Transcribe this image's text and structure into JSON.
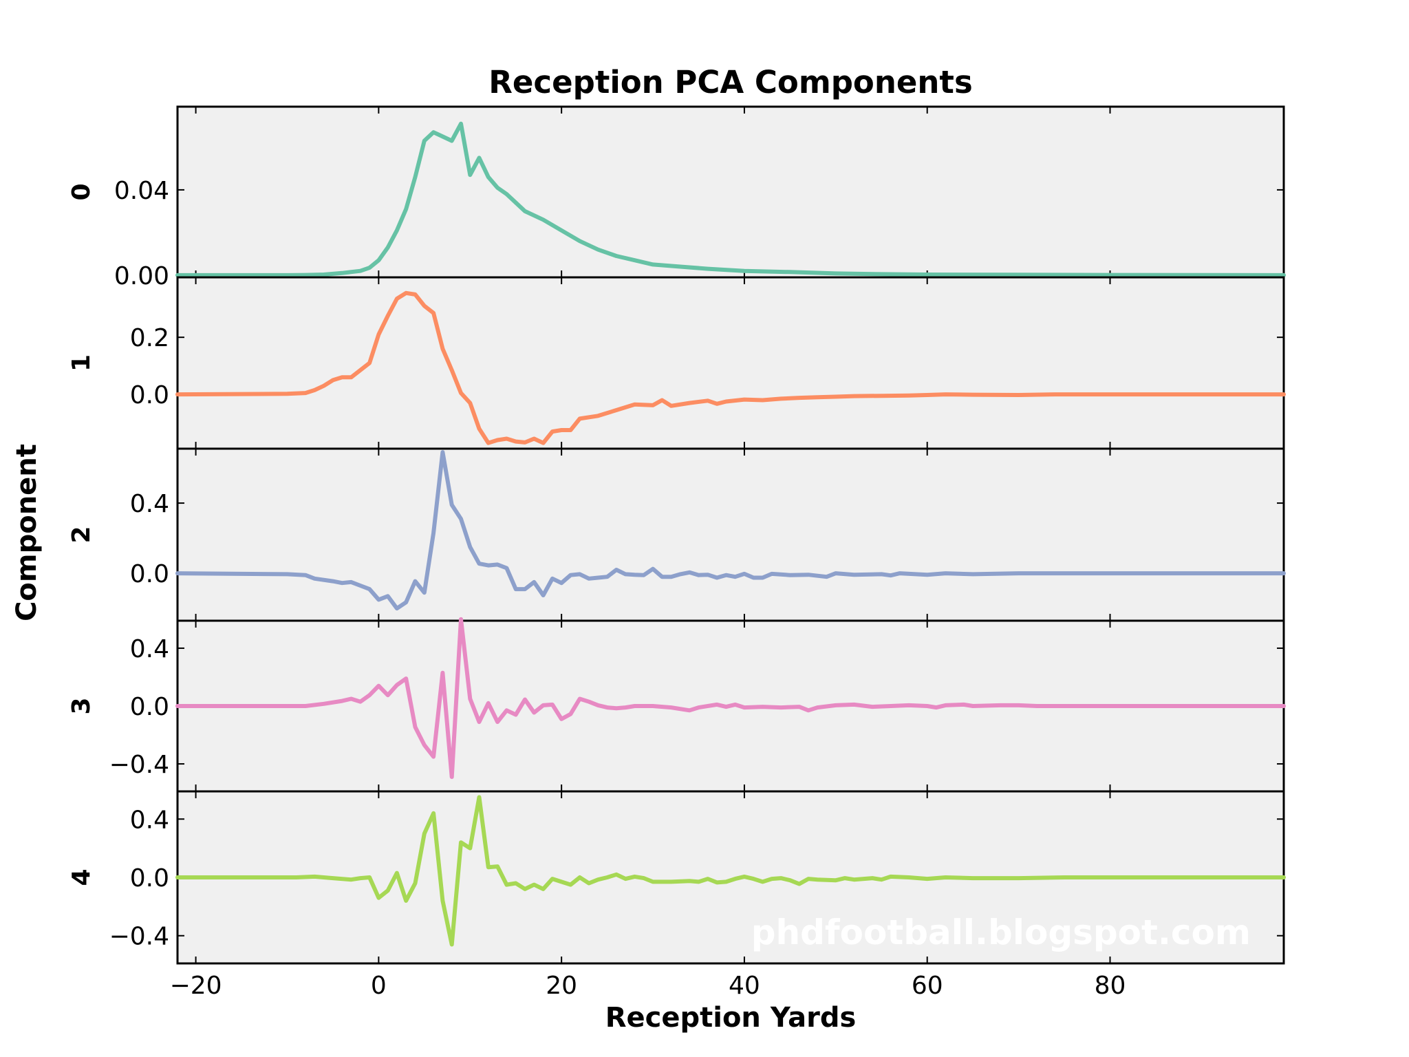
{
  "chart_data": {
    "type": "line",
    "title": "Reception PCA Components",
    "xlabel": "Reception Yards",
    "ylabel": "Component",
    "xlim": [
      -22,
      99
    ],
    "x_ticks": [
      -20,
      0,
      20,
      40,
      60,
      80
    ],
    "x_tick_labels": [
      "−20",
      "0",
      "20",
      "40",
      "60",
      "80"
    ],
    "watermark": "phdfootball.blogspot.com",
    "grid": false,
    "panels": [
      {
        "label": "0",
        "color": "#66c2a5",
        "ylim": [
          -0.001,
          0.079
        ],
        "y_ticks": [
          0.0,
          0.04
        ],
        "y_tick_labels": [
          "0.00",
          "0.04"
        ],
        "points": [
          [
            -22,
            0.0
          ],
          [
            -10,
            0.0
          ],
          [
            -8,
            0.0001
          ],
          [
            -6,
            0.0003
          ],
          [
            -4,
            0.001
          ],
          [
            -2,
            0.002
          ],
          [
            -1,
            0.0035
          ],
          [
            0,
            0.007
          ],
          [
            1,
            0.013
          ],
          [
            2,
            0.021
          ],
          [
            3,
            0.031
          ],
          [
            4,
            0.046
          ],
          [
            5,
            0.063
          ],
          [
            6,
            0.067
          ],
          [
            7,
            0.065
          ],
          [
            8,
            0.063
          ],
          [
            9,
            0.071
          ],
          [
            10,
            0.047
          ],
          [
            11,
            0.055
          ],
          [
            12,
            0.046
          ],
          [
            13,
            0.041
          ],
          [
            14,
            0.038
          ],
          [
            16,
            0.03
          ],
          [
            18,
            0.026
          ],
          [
            20,
            0.021
          ],
          [
            22,
            0.016
          ],
          [
            24,
            0.012
          ],
          [
            26,
            0.009
          ],
          [
            28,
            0.007
          ],
          [
            30,
            0.005
          ],
          [
            33,
            0.004
          ],
          [
            36,
            0.003
          ],
          [
            40,
            0.002
          ],
          [
            45,
            0.0015
          ],
          [
            50,
            0.0008
          ],
          [
            55,
            0.0005
          ],
          [
            60,
            0.0003
          ],
          [
            70,
            0.0002
          ],
          [
            80,
            0.0001
          ],
          [
            99,
            0.0
          ]
        ]
      },
      {
        "label": "1",
        "color": "#fc8d62",
        "ylim": [
          -0.19,
          0.41
        ],
        "y_ticks": [
          0.0,
          0.2
        ],
        "y_tick_labels": [
          "0.0",
          "0.2"
        ],
        "points": [
          [
            -22,
            0.0
          ],
          [
            -10,
            0.002
          ],
          [
            -8,
            0.005
          ],
          [
            -7,
            0.015
          ],
          [
            -6,
            0.03
          ],
          [
            -5,
            0.05
          ],
          [
            -4,
            0.06
          ],
          [
            -3,
            0.06
          ],
          [
            -2,
            0.085
          ],
          [
            -1,
            0.11
          ],
          [
            0,
            0.21
          ],
          [
            1,
            0.275
          ],
          [
            2,
            0.335
          ],
          [
            3,
            0.355
          ],
          [
            4,
            0.35
          ],
          [
            5,
            0.31
          ],
          [
            6,
            0.285
          ],
          [
            7,
            0.16
          ],
          [
            8,
            0.085
          ],
          [
            9,
            0.005
          ],
          [
            10,
            -0.03
          ],
          [
            11,
            -0.12
          ],
          [
            12,
            -0.17
          ],
          [
            13,
            -0.16
          ],
          [
            14,
            -0.155
          ],
          [
            15,
            -0.165
          ],
          [
            16,
            -0.168
          ],
          [
            17,
            -0.155
          ],
          [
            18,
            -0.17
          ],
          [
            19,
            -0.13
          ],
          [
            20,
            -0.125
          ],
          [
            21,
            -0.125
          ],
          [
            22,
            -0.085
          ],
          [
            24,
            -0.075
          ],
          [
            26,
            -0.055
          ],
          [
            28,
            -0.035
          ],
          [
            30,
            -0.038
          ],
          [
            31,
            -0.02
          ],
          [
            32,
            -0.04
          ],
          [
            34,
            -0.03
          ],
          [
            36,
            -0.022
          ],
          [
            37,
            -0.033
          ],
          [
            38,
            -0.025
          ],
          [
            40,
            -0.018
          ],
          [
            42,
            -0.02
          ],
          [
            44,
            -0.015
          ],
          [
            46,
            -0.012
          ],
          [
            48,
            -0.01
          ],
          [
            50,
            -0.008
          ],
          [
            52,
            -0.006
          ],
          [
            55,
            -0.005
          ],
          [
            58,
            -0.004
          ],
          [
            60,
            -0.002
          ],
          [
            62,
            0.0
          ],
          [
            65,
            -0.001
          ],
          [
            70,
            -0.002
          ],
          [
            74,
            0.0
          ],
          [
            80,
            0.0
          ],
          [
            99,
            0.0
          ]
        ]
      },
      {
        "label": "2",
        "color": "#8da0cb",
        "ylim": [
          -0.27,
          0.71
        ],
        "y_ticks": [
          0.0,
          0.4
        ],
        "y_tick_labels": [
          "0.0",
          "0.4"
        ],
        "points": [
          [
            -22,
            0.0
          ],
          [
            -10,
            -0.005
          ],
          [
            -8,
            -0.01
          ],
          [
            -7,
            -0.03
          ],
          [
            -5,
            -0.045
          ],
          [
            -4,
            -0.055
          ],
          [
            -3,
            -0.05
          ],
          [
            -2,
            -0.07
          ],
          [
            -1,
            -0.09
          ],
          [
            0,
            -0.15
          ],
          [
            1,
            -0.13
          ],
          [
            2,
            -0.2
          ],
          [
            3,
            -0.165
          ],
          [
            4,
            -0.045
          ],
          [
            5,
            -0.11
          ],
          [
            6,
            0.23
          ],
          [
            7,
            0.69
          ],
          [
            8,
            0.39
          ],
          [
            9,
            0.31
          ],
          [
            10,
            0.15
          ],
          [
            11,
            0.055
          ],
          [
            12,
            0.045
          ],
          [
            13,
            0.05
          ],
          [
            14,
            0.03
          ],
          [
            15,
            -0.09
          ],
          [
            16,
            -0.09
          ],
          [
            17,
            -0.05
          ],
          [
            18,
            -0.125
          ],
          [
            19,
            -0.03
          ],
          [
            20,
            -0.055
          ],
          [
            21,
            -0.01
          ],
          [
            22,
            -0.005
          ],
          [
            23,
            -0.03
          ],
          [
            24,
            -0.025
          ],
          [
            25,
            -0.02
          ],
          [
            26,
            0.02
          ],
          [
            27,
            -0.005
          ],
          [
            28,
            -0.008
          ],
          [
            29,
            -0.01
          ],
          [
            30,
            0.025
          ],
          [
            31,
            -0.02
          ],
          [
            32,
            -0.02
          ],
          [
            33,
            -0.005
          ],
          [
            34,
            0.005
          ],
          [
            35,
            -0.01
          ],
          [
            36,
            -0.008
          ],
          [
            37,
            -0.025
          ],
          [
            38,
            -0.01
          ],
          [
            39,
            -0.02
          ],
          [
            40,
            -0.003
          ],
          [
            41,
            -0.025
          ],
          [
            42,
            -0.025
          ],
          [
            43,
            -0.003
          ],
          [
            45,
            -0.01
          ],
          [
            47,
            -0.008
          ],
          [
            49,
            -0.02
          ],
          [
            50,
            0.0
          ],
          [
            52,
            -0.008
          ],
          [
            55,
            -0.005
          ],
          [
            56,
            -0.012
          ],
          [
            57,
            0.0
          ],
          [
            60,
            -0.008
          ],
          [
            62,
            0.0
          ],
          [
            65,
            -0.005
          ],
          [
            70,
            0.0
          ],
          [
            80,
            0.0
          ],
          [
            99,
            0.0
          ]
        ]
      },
      {
        "label": "3",
        "color": "#e78ac3",
        "ylim": [
          -0.59,
          0.59
        ],
        "y_ticks": [
          -0.4,
          0.0,
          0.4
        ],
        "y_tick_labels": [
          "−0.4",
          "0.0",
          "0.4"
        ],
        "points": [
          [
            -22,
            0.0
          ],
          [
            -8,
            0.0
          ],
          [
            -6,
            0.015
          ],
          [
            -4,
            0.035
          ],
          [
            -3,
            0.05
          ],
          [
            -2,
            0.03
          ],
          [
            -1,
            0.075
          ],
          [
            0,
            0.14
          ],
          [
            1,
            0.075
          ],
          [
            2,
            0.145
          ],
          [
            3,
            0.19
          ],
          [
            4,
            -0.145
          ],
          [
            5,
            -0.27
          ],
          [
            6,
            -0.35
          ],
          [
            7,
            0.23
          ],
          [
            8,
            -0.49
          ],
          [
            9,
            0.6
          ],
          [
            10,
            0.05
          ],
          [
            11,
            -0.11
          ],
          [
            12,
            0.02
          ],
          [
            13,
            -0.11
          ],
          [
            14,
            -0.03
          ],
          [
            15,
            -0.06
          ],
          [
            16,
            0.045
          ],
          [
            17,
            -0.045
          ],
          [
            18,
            0.005
          ],
          [
            19,
            0.01
          ],
          [
            20,
            -0.09
          ],
          [
            21,
            -0.055
          ],
          [
            22,
            0.05
          ],
          [
            23,
            0.03
          ],
          [
            24,
            0.005
          ],
          [
            25,
            -0.01
          ],
          [
            26,
            -0.015
          ],
          [
            27,
            -0.01
          ],
          [
            28,
            0.0
          ],
          [
            30,
            0.0
          ],
          [
            32,
            -0.01
          ],
          [
            34,
            -0.03
          ],
          [
            35,
            -0.01
          ],
          [
            37,
            0.01
          ],
          [
            38,
            -0.005
          ],
          [
            39,
            0.01
          ],
          [
            40,
            -0.01
          ],
          [
            42,
            -0.005
          ],
          [
            44,
            -0.01
          ],
          [
            46,
            -0.005
          ],
          [
            47,
            -0.03
          ],
          [
            48,
            -0.01
          ],
          [
            50,
            0.005
          ],
          [
            52,
            0.01
          ],
          [
            54,
            -0.005
          ],
          [
            56,
            0.0
          ],
          [
            58,
            0.005
          ],
          [
            60,
            0.0
          ],
          [
            61,
            -0.01
          ],
          [
            62,
            0.005
          ],
          [
            64,
            0.01
          ],
          [
            65,
            0.0
          ],
          [
            68,
            0.005
          ],
          [
            70,
            0.005
          ],
          [
            72,
            0.0
          ],
          [
            75,
            0.0
          ],
          [
            80,
            0.0
          ],
          [
            99,
            0.0
          ]
        ]
      },
      {
        "label": "4",
        "color": "#a6d854",
        "ylim": [
          -0.59,
          0.59
        ],
        "y_ticks": [
          -0.4,
          0.0,
          0.4
        ],
        "y_tick_labels": [
          "−0.4",
          "0.0",
          "0.4"
        ],
        "points": [
          [
            -22,
            0.0
          ],
          [
            -9,
            0.0
          ],
          [
            -7,
            0.005
          ],
          [
            -5,
            -0.005
          ],
          [
            -3,
            -0.015
          ],
          [
            -2,
            -0.005
          ],
          [
            -1,
            0.0
          ],
          [
            0,
            -0.14
          ],
          [
            1,
            -0.09
          ],
          [
            2,
            0.03
          ],
          [
            3,
            -0.16
          ],
          [
            4,
            -0.04
          ],
          [
            5,
            0.3
          ],
          [
            6,
            0.44
          ],
          [
            7,
            -0.16
          ],
          [
            8,
            -0.46
          ],
          [
            9,
            0.24
          ],
          [
            10,
            0.2
          ],
          [
            11,
            0.55
          ],
          [
            12,
            0.07
          ],
          [
            13,
            0.075
          ],
          [
            14,
            -0.05
          ],
          [
            15,
            -0.04
          ],
          [
            16,
            -0.08
          ],
          [
            17,
            -0.05
          ],
          [
            18,
            -0.08
          ],
          [
            19,
            -0.01
          ],
          [
            20,
            -0.03
          ],
          [
            21,
            -0.05
          ],
          [
            22,
            0.0
          ],
          [
            23,
            -0.04
          ],
          [
            24,
            -0.015
          ],
          [
            25,
            0.0
          ],
          [
            26,
            0.02
          ],
          [
            27,
            -0.01
          ],
          [
            28,
            0.005
          ],
          [
            29,
            -0.005
          ],
          [
            30,
            -0.03
          ],
          [
            32,
            -0.03
          ],
          [
            34,
            -0.025
          ],
          [
            35,
            -0.03
          ],
          [
            36,
            -0.01
          ],
          [
            37,
            -0.035
          ],
          [
            38,
            -0.03
          ],
          [
            39,
            -0.01
          ],
          [
            40,
            0.005
          ],
          [
            41,
            -0.01
          ],
          [
            42,
            -0.03
          ],
          [
            43,
            -0.01
          ],
          [
            44,
            -0.005
          ],
          [
            45,
            -0.02
          ],
          [
            46,
            -0.045
          ],
          [
            47,
            -0.01
          ],
          [
            48,
            -0.015
          ],
          [
            50,
            -0.02
          ],
          [
            51,
            -0.005
          ],
          [
            52,
            -0.015
          ],
          [
            54,
            -0.005
          ],
          [
            55,
            -0.015
          ],
          [
            56,
            0.005
          ],
          [
            58,
            0.0
          ],
          [
            60,
            -0.01
          ],
          [
            62,
            0.0
          ],
          [
            65,
            -0.005
          ],
          [
            70,
            -0.005
          ],
          [
            75,
            0.0
          ],
          [
            80,
            0.0
          ],
          [
            99,
            0.0
          ]
        ]
      }
    ]
  }
}
